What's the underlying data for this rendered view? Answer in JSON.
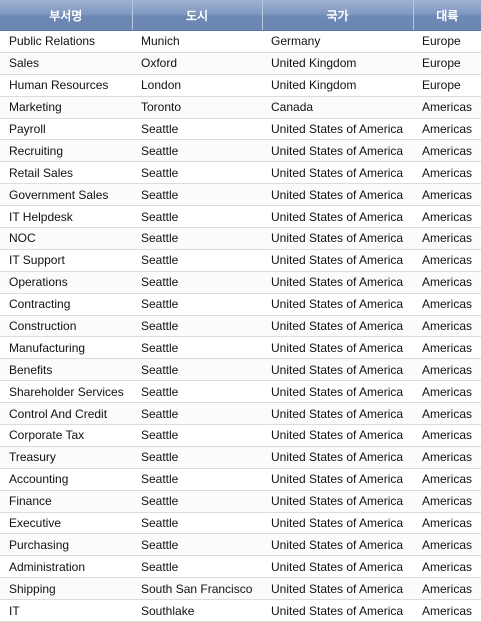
{
  "table": {
    "headers": [
      "부서명",
      "도시",
      "국가",
      "대륙"
    ],
    "rows": [
      [
        "Public Relations",
        "Munich",
        "Germany",
        "Europe"
      ],
      [
        "Sales",
        "Oxford",
        "United Kingdom",
        "Europe"
      ],
      [
        "Human Resources",
        "London",
        "United Kingdom",
        "Europe"
      ],
      [
        "Marketing",
        "Toronto",
        "Canada",
        "Americas"
      ],
      [
        "Payroll",
        "Seattle",
        "United States of America",
        "Americas"
      ],
      [
        "Recruiting",
        "Seattle",
        "United States of America",
        "Americas"
      ],
      [
        "Retail Sales",
        "Seattle",
        "United States of America",
        "Americas"
      ],
      [
        "Government Sales",
        "Seattle",
        "United States of America",
        "Americas"
      ],
      [
        "IT Helpdesk",
        "Seattle",
        "United States of America",
        "Americas"
      ],
      [
        "NOC",
        "Seattle",
        "United States of America",
        "Americas"
      ],
      [
        "IT Support",
        "Seattle",
        "United States of America",
        "Americas"
      ],
      [
        "Operations",
        "Seattle",
        "United States of America",
        "Americas"
      ],
      [
        "Contracting",
        "Seattle",
        "United States of America",
        "Americas"
      ],
      [
        "Construction",
        "Seattle",
        "United States of America",
        "Americas"
      ],
      [
        "Manufacturing",
        "Seattle",
        "United States of America",
        "Americas"
      ],
      [
        "Benefits",
        "Seattle",
        "United States of America",
        "Americas"
      ],
      [
        "Shareholder Services",
        "Seattle",
        "United States of America",
        "Americas"
      ],
      [
        "Control And Credit",
        "Seattle",
        "United States of America",
        "Americas"
      ],
      [
        "Corporate Tax",
        "Seattle",
        "United States of America",
        "Americas"
      ],
      [
        "Treasury",
        "Seattle",
        "United States of America",
        "Americas"
      ],
      [
        "Accounting",
        "Seattle",
        "United States of America",
        "Americas"
      ],
      [
        "Finance",
        "Seattle",
        "United States of America",
        "Americas"
      ],
      [
        "Executive",
        "Seattle",
        "United States of America",
        "Americas"
      ],
      [
        "Purchasing",
        "Seattle",
        "United States of America",
        "Americas"
      ],
      [
        "Administration",
        "Seattle",
        "United States of America",
        "Americas"
      ],
      [
        "Shipping",
        "South San Francisco",
        "United States of America",
        "Americas"
      ],
      [
        "IT",
        "Southlake",
        "United States of America",
        "Americas"
      ]
    ]
  },
  "colors": {
    "header_background": "#7e97c0",
    "header_text": "#ffffff",
    "row_border": "#dcdcdc"
  }
}
